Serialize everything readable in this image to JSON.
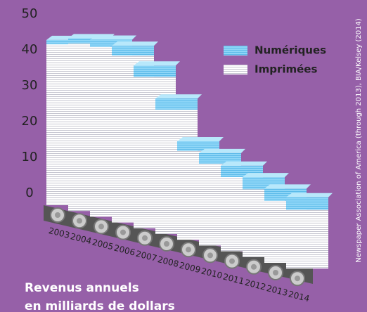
{
  "chart_data": {
    "type": "stacked-bar",
    "categories": [
      "2003",
      "2004",
      "2005",
      "2006",
      "2007",
      "2008",
      "2009",
      "2010",
      "2011",
      "2012",
      "2013",
      "2014"
    ],
    "series": [
      {
        "name": "Numériques",
        "color": "#8ed6f7",
        "values": [
          1.2,
          1.5,
          2.0,
          2.7,
          3.2,
          3.1,
          2.7,
          3.0,
          3.2,
          3.4,
          3.4,
          3.5
        ]
      },
      {
        "name": "Imprimées",
        "color": "#ffffff",
        "values": [
          44.9,
          46.7,
          47.4,
          46.6,
          42.2,
          34.7,
          24.8,
          22.8,
          20.7,
          18.9,
          17.3,
          16.4
        ]
      }
    ],
    "ylim": [
      0,
      50
    ],
    "yticks": [
      0,
      10,
      20,
      30,
      40,
      50
    ],
    "ylabel": [
      "Revenus annuels",
      "en milliards de dollars"
    ],
    "source": "Newspaper Association of America (through 2013), BIA/Kelsey (2014)",
    "legend": "top-right"
  }
}
